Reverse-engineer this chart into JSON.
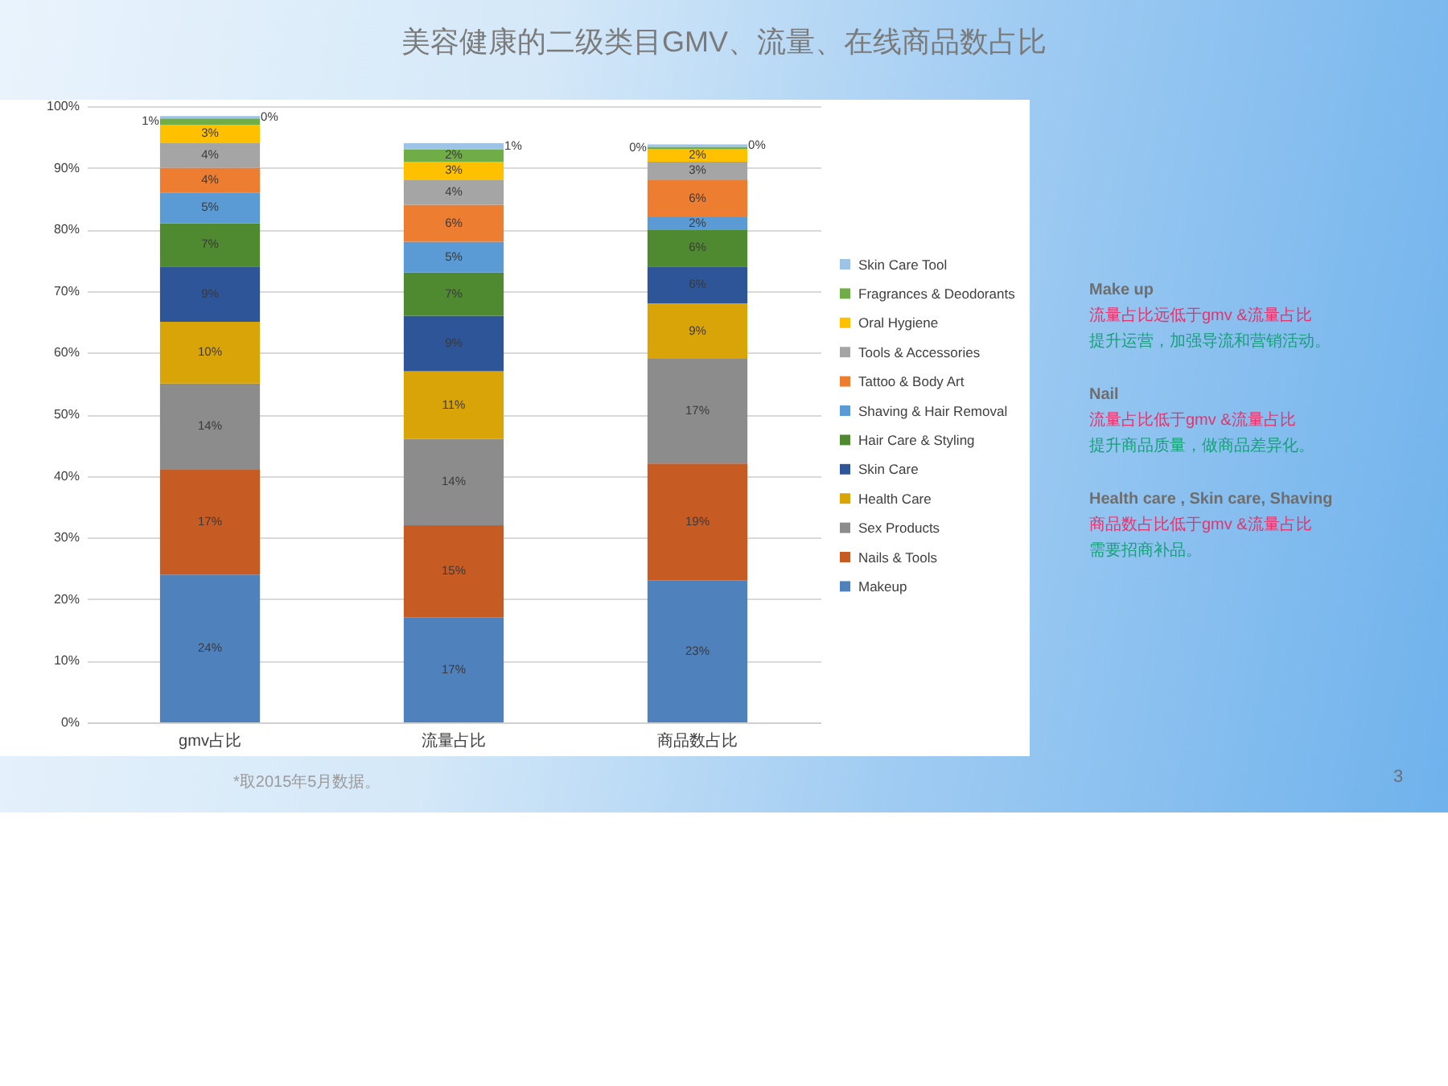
{
  "chart_data": {
    "type": "bar",
    "title": "美容健康的二级类目GMV、流量、在线商品数占比",
    "categories": [
      "gmv占比",
      "流量占比",
      "商品数占比"
    ],
    "stacked": true,
    "ylim": [
      0,
      100
    ],
    "yticks": [
      {
        "value": 0,
        "label": "0%"
      },
      {
        "value": 10,
        "label": "10%"
      },
      {
        "value": 20,
        "label": "20%"
      },
      {
        "value": 30,
        "label": "30%"
      },
      {
        "value": 40,
        "label": "40%"
      },
      {
        "value": 50,
        "label": "50%"
      },
      {
        "value": 60,
        "label": "60%"
      },
      {
        "value": 70,
        "label": "70%"
      },
      {
        "value": 80,
        "label": "80%"
      },
      {
        "value": 90,
        "label": "90%"
      },
      {
        "value": 100,
        "label": "100%"
      }
    ],
    "grid": "y",
    "legend": "right",
    "series": [
      {
        "name": "Makeup",
        "color": "#4f81bd",
        "values": [
          24,
          17,
          23
        ],
        "value_labels": [
          "24%",
          "17%",
          "23%"
        ]
      },
      {
        "name": "Nails & Tools",
        "color": "#c65b24",
        "values": [
          17,
          15,
          19
        ],
        "value_labels": [
          "17%",
          "15%",
          "19%"
        ]
      },
      {
        "name": "Sex Products",
        "color": "#8c8c8c",
        "values": [
          14,
          14,
          17
        ],
        "value_labels": [
          "14%",
          "14%",
          "17%"
        ]
      },
      {
        "name": "Health Care",
        "color": "#d9a408",
        "values": [
          10,
          11,
          9
        ],
        "value_labels": [
          "10%",
          "11%",
          "9%"
        ]
      },
      {
        "name": "Skin Care",
        "color": "#2e5597",
        "values": [
          9,
          9,
          6
        ],
        "value_labels": [
          "9%",
          "9%",
          "6%"
        ]
      },
      {
        "name": "Hair Care & Styling",
        "color": "#4f8a31",
        "values": [
          7,
          7,
          6
        ],
        "value_labels": [
          "7%",
          "7%",
          "6%"
        ]
      },
      {
        "name": "Shaving & Hair Removal",
        "color": "#5b9bd5",
        "values": [
          5,
          5,
          2
        ],
        "value_labels": [
          "5%",
          "5%",
          "2%"
        ]
      },
      {
        "name": "Tattoo & Body Art",
        "color": "#ed7d31",
        "values": [
          4,
          6,
          6
        ],
        "value_labels": [
          "4%",
          "6%",
          "6%"
        ]
      },
      {
        "name": "Tools & Accessories",
        "color": "#a5a5a5",
        "values": [
          4,
          4,
          3
        ],
        "value_labels": [
          "4%",
          "4%",
          "3%"
        ]
      },
      {
        "name": "Oral Hygiene",
        "color": "#ffc000",
        "values": [
          3,
          3,
          2
        ],
        "value_labels": [
          "3%",
          "3%",
          "2%"
        ]
      },
      {
        "name": "Fragrances & Deodorants",
        "color": "#70ad47",
        "values": [
          1,
          2,
          0.4
        ],
        "value_labels": [
          "1%",
          "2%",
          "0%"
        ]
      },
      {
        "name": "Skin Care Tool",
        "color": "#9dc3e6",
        "values": [
          0.4,
          1,
          0.4
        ],
        "value_labels": [
          "0%",
          "1%",
          "0%"
        ]
      }
    ],
    "annotations": [
      "Make up",
      "流量占比远低于gmv &流量占比",
      "提升运营，加强导流和营销活动。",
      "Nail",
      "流量占比低于gmv &流量占比",
      "提升商品质量，做商品差异化。",
      "Health care , Skin care, Shaving",
      "商品数占比低于gmv &流量占比",
      "需要招商补品。",
      "*取2015年5月数据。",
      "3"
    ]
  }
}
